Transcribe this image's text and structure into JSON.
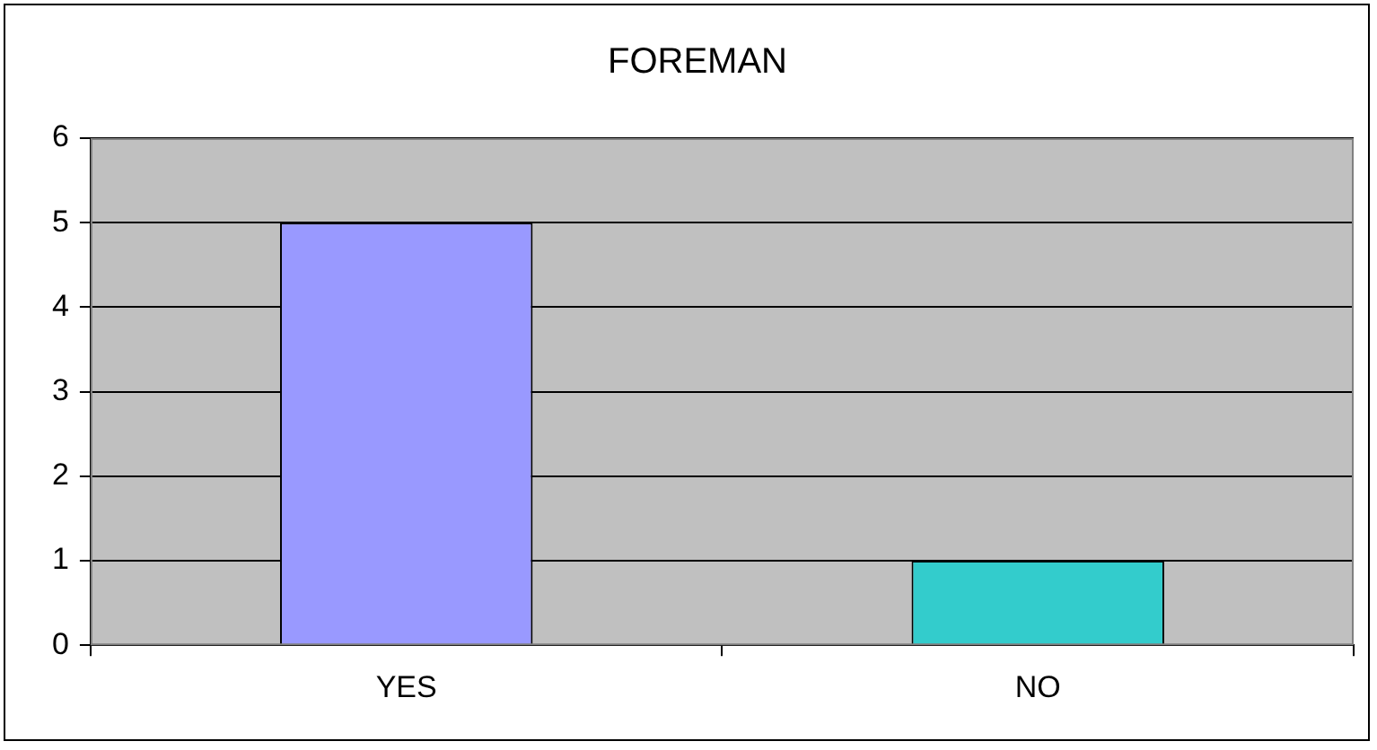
{
  "chart_data": {
    "type": "bar",
    "title": "FOREMAN",
    "categories": [
      "YES",
      "NO"
    ],
    "values": [
      5,
      1
    ],
    "colors": [
      "#9999ff",
      "#33cccc"
    ],
    "ylim": [
      0,
      6
    ],
    "yticks": [
      0,
      1,
      2,
      3,
      4,
      5,
      6
    ],
    "grid": "y",
    "legend": false
  }
}
